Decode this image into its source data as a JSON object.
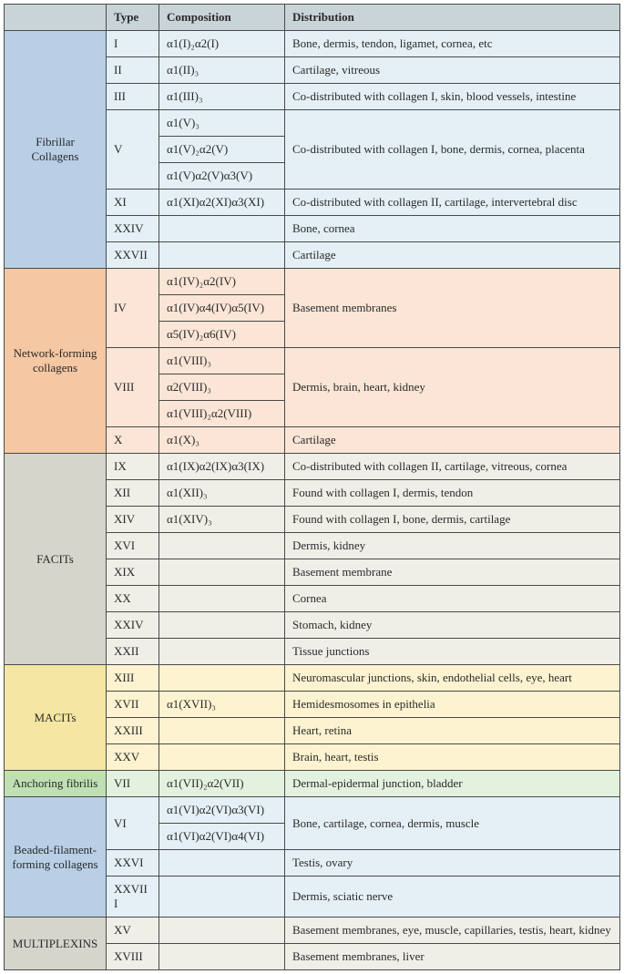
{
  "header": {
    "type": "Type",
    "composition": "Composition",
    "distribution": "Distribution"
  },
  "colors": {
    "header_bg": "#c8d4d8",
    "border": "#4a4a4a",
    "cat_fibrillar": "#b8cfe6",
    "row_fibrillar": "#e4f0f6",
    "cat_network": "#f5c7a3",
    "row_network": "#fbe5d6",
    "cat_facit": "#d5d5cc",
    "row_facit": "#efefe8",
    "cat_macit": "#f5e6a3",
    "row_macit": "#fdf3d0",
    "cat_anchor": "#bfe0b3",
    "row_anchor": "#e3f2de",
    "cat_beaded": "#b8cfe6",
    "row_beaded": "#e4f0f6",
    "cat_multi": "#d5d5cc",
    "row_multi": "#efefe8"
  },
  "sections": [
    {
      "name": "Fibrillar Collagens",
      "cat_color_key": "cat_fibrillar",
      "row_color_key": "row_fibrillar",
      "rows": [
        {
          "type": "I",
          "comp_span": 1,
          "comp": "α1(I)₂α2(I)",
          "dist_span": 1,
          "dist": "Bone, dermis, tendon, ligamet, cornea, etc"
        },
        {
          "type": "II",
          "comp_span": 1,
          "comp": "α1(II)₃",
          "dist_span": 1,
          "dist": "Cartilage, vitreous"
        },
        {
          "type": "III",
          "comp_span": 1,
          "comp": "α1(III)₃",
          "dist_span": 1,
          "dist": "Co-distributed with collagen I, skin, blood vessels, intestine"
        },
        {
          "type": "V",
          "type_span": 3,
          "comp_span": 1,
          "comp": "α1(V)₃",
          "dist_span": 3,
          "dist": "Co-distributed with collagen I, bone, dermis, cornea, placenta"
        },
        {
          "comp_span": 1,
          "comp": "α1(V)₂α2(V)"
        },
        {
          "comp_span": 1,
          "comp": "α1(V)α2(V)α3(V)"
        },
        {
          "type": "XI",
          "comp_span": 1,
          "comp": "α1(XI)α2(XI)α3(XI)",
          "dist_span": 1,
          "dist": "Co-distributed with collagen II, cartilage, intervertebral disc"
        },
        {
          "type": "XXIV",
          "comp_span": 1,
          "comp": "",
          "dist_span": 1,
          "dist": "Bone, cornea"
        },
        {
          "type": "XXVII",
          "comp_span": 1,
          "comp": "",
          "dist_span": 1,
          "dist": "Cartilage"
        }
      ]
    },
    {
      "name": "Network-forming collagens",
      "cat_color_key": "cat_network",
      "row_color_key": "row_network",
      "rows": [
        {
          "type": "IV",
          "type_span": 3,
          "comp_span": 1,
          "comp": "α1(IV)₂α2(IV)",
          "dist_span": 3,
          "dist": "Basement membranes"
        },
        {
          "comp_span": 1,
          "comp": "α1(IV)α4(IV)α5(IV)"
        },
        {
          "comp_span": 1,
          "comp": "α5(IV)₂α6(IV)"
        },
        {
          "type": "VIII",
          "type_span": 3,
          "comp_span": 1,
          "comp": "α1(VIII)₃",
          "dist_span": 3,
          "dist": "Dermis, brain, heart, kidney"
        },
        {
          "comp_span": 1,
          "comp": "α2(VIII)₃"
        },
        {
          "comp_span": 1,
          "comp": "α1(VIII)₂α2(VIII)"
        },
        {
          "type": "X",
          "comp_span": 1,
          "comp": "α1(X)₃",
          "dist_span": 1,
          "dist": "Cartilage"
        }
      ]
    },
    {
      "name": "FACITs",
      "cat_color_key": "cat_facit",
      "row_color_key": "row_facit",
      "rows": [
        {
          "type": "IX",
          "comp_span": 1,
          "comp": "α1(IX)α2(IX)α3(IX)",
          "dist_span": 1,
          "dist": "Co-distributed with collagen II, cartilage, vitreous, cornea"
        },
        {
          "type": "XII",
          "comp_span": 1,
          "comp": "α1(XII)₃",
          "dist_span": 1,
          "dist": "Found with collagen I, dermis, tendon"
        },
        {
          "type": "XIV",
          "comp_span": 1,
          "comp": "α1(XIV)₃",
          "dist_span": 1,
          "dist": "Found with collagen I, bone, dermis, cartilage"
        },
        {
          "type": "XVI",
          "comp_span": 1,
          "comp": "",
          "dist_span": 1,
          "dist": "Dermis, kidney"
        },
        {
          "type": "XIX",
          "comp_span": 1,
          "comp": "",
          "dist_span": 1,
          "dist": "Basement membrane"
        },
        {
          "type": "XX",
          "comp_span": 1,
          "comp": "",
          "dist_span": 1,
          "dist": "Cornea"
        },
        {
          "type": "XXIV",
          "comp_span": 1,
          "comp": "",
          "dist_span": 1,
          "dist": "Stomach, kidney"
        },
        {
          "type": "XXII",
          "comp_span": 1,
          "comp": "",
          "dist_span": 1,
          "dist": "Tissue junctions"
        }
      ]
    },
    {
      "name": "MACITs",
      "cat_color_key": "cat_macit",
      "row_color_key": "row_macit",
      "rows": [
        {
          "type": "XIII",
          "comp_span": 1,
          "comp": "",
          "dist_span": 1,
          "dist": "Neuromascular junctions, skin, endothelial cells, eye, heart"
        },
        {
          "type": "XVII",
          "comp_span": 1,
          "comp": "α1(XVII)₃",
          "dist_span": 1,
          "dist": "Hemidesmosomes in epithelia"
        },
        {
          "type": "XXIII",
          "comp_span": 1,
          "comp": "",
          "dist_span": 1,
          "dist": "Heart, retina"
        },
        {
          "type": "XXV",
          "comp_span": 1,
          "comp": "",
          "dist_span": 1,
          "dist": "Brain, heart, testis"
        }
      ]
    },
    {
      "name": "Anchoring fibrilis",
      "cat_color_key": "cat_anchor",
      "row_color_key": "row_anchor",
      "rows": [
        {
          "type": "VII",
          "comp_span": 1,
          "comp": "α1(VII)₂α2(VII)",
          "dist_span": 1,
          "dist": "Dermal-epidermal junction, bladder"
        }
      ]
    },
    {
      "name": "Beaded-filament-forming collagens",
      "cat_color_key": "cat_beaded",
      "row_color_key": "row_beaded",
      "rows": [
        {
          "type": "VI",
          "type_span": 2,
          "comp_span": 1,
          "comp": "α1(VI)α2(VI)α3(VI)",
          "dist_span": 2,
          "dist": "Bone, cartilage, cornea, dermis, muscle"
        },
        {
          "comp_span": 1,
          "comp": "α1(VI)α2(VI)α4(VI)"
        },
        {
          "type": "XXVI",
          "comp_span": 1,
          "comp": "",
          "dist_span": 1,
          "dist": "Testis, ovary"
        },
        {
          "type": "XXVIII",
          "comp_span": 1,
          "comp": "",
          "dist_span": 1,
          "dist": "Dermis, sciatic nerve"
        }
      ]
    },
    {
      "name": "MULTIPLEXINS",
      "cat_color_key": "cat_multi",
      "row_color_key": "row_multi",
      "rows": [
        {
          "type": "XV",
          "comp_span": 1,
          "comp": "",
          "dist_span": 1,
          "dist": "Basement membranes, eye, muscle, capillaries, testis, heart, kidney"
        },
        {
          "type": "XVIII",
          "comp_span": 1,
          "comp": "",
          "dist_span": 1,
          "dist": "Basement membranes, liver"
        }
      ]
    }
  ]
}
